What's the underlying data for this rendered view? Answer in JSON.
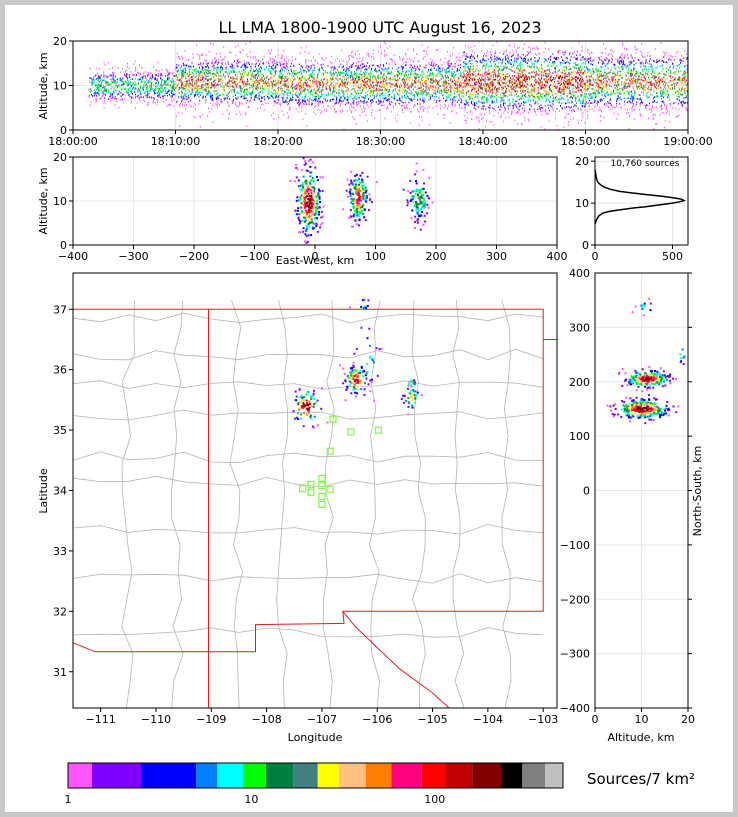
{
  "chart_data": [
    {
      "type": "scatter",
      "panel": "altitude-vs-time",
      "title": "LL LMA 1800-1900 UTC August 16, 2023",
      "xlabel": "",
      "ylabel": "Altitude, km",
      "xlim": [
        0,
        60
      ],
      "ylim": [
        0,
        20
      ],
      "x_ticks": [
        0,
        10,
        20,
        30,
        40,
        50,
        60
      ],
      "x_tick_labels": [
        "18:00:00",
        "18:10:00",
        "18:20:00",
        "18:30:00",
        "18:40:00",
        "18:50:00",
        "19:00:00"
      ],
      "y_ticks": [
        0,
        10,
        20
      ],
      "density_bands": [
        {
          "t_start": 1.5,
          "t_end": 10,
          "alt_center": 10,
          "alt_spread": 2,
          "intensity": 0.5
        },
        {
          "t_start": 10,
          "t_end": 20,
          "alt_center": 11,
          "alt_spread": 3,
          "intensity": 0.8
        },
        {
          "t_start": 20,
          "t_end": 38,
          "alt_center": 10.5,
          "alt_spread": 3,
          "intensity": 0.8
        },
        {
          "t_start": 38,
          "t_end": 50,
          "alt_center": 11,
          "alt_spread": 4,
          "intensity": 1.0
        },
        {
          "t_start": 50,
          "t_end": 60,
          "alt_center": 11,
          "alt_spread": 3.5,
          "intensity": 0.8
        }
      ]
    },
    {
      "type": "heatmap",
      "panel": "altitude-vs-east-west",
      "xlabel": "East-West, km",
      "ylabel": "Altitude, km",
      "xlim": [
        -400,
        400
      ],
      "ylim": [
        0,
        20
      ],
      "x_ticks": [
        -400,
        -300,
        -200,
        -100,
        0,
        100,
        200,
        300,
        400
      ],
      "y_ticks": [
        0,
        10,
        20
      ],
      "clusters": [
        {
          "x": -12,
          "y": 10,
          "sx": 10,
          "sy": 4,
          "n": 280,
          "peak": 1.0
        },
        {
          "x": 70,
          "y": 11,
          "sx": 8,
          "sy": 2.8,
          "n": 170,
          "peak": 0.85
        },
        {
          "x": 170,
          "y": 10.5,
          "sx": 9,
          "sy": 2.5,
          "n": 110,
          "peak": 0.5
        }
      ]
    },
    {
      "type": "line",
      "panel": "altitude-histogram",
      "annotation": "10,760 sources",
      "xlim": [
        0,
        600
      ],
      "ylim": [
        0,
        21
      ],
      "x_ticks": [
        0,
        500
      ],
      "y_ticks": [
        0,
        10,
        20
      ],
      "x": [
        0,
        10,
        25,
        50,
        90,
        140,
        200,
        260,
        320,
        380,
        440,
        500,
        545,
        575,
        560,
        520,
        440,
        340,
        240,
        160,
        100,
        60,
        35,
        18,
        10,
        5,
        0
      ],
      "y": [
        5,
        6,
        7,
        7.6,
        8,
        8.3,
        8.6,
        8.9,
        9.1,
        9.4,
        9.7,
        10,
        10.3,
        10.6,
        10.9,
        11.2,
        11.6,
        12,
        12.4,
        12.8,
        13.3,
        13.8,
        14.4,
        15,
        15.8,
        16.8,
        18
      ]
    },
    {
      "type": "heatmap",
      "panel": "plan-view-map",
      "xlabel": "Longitude",
      "ylabel": "Latitude",
      "xlim": [
        -111.5,
        -102.75
      ],
      "ylim": [
        30.4,
        37.6
      ],
      "x_ticks": [
        -111,
        -110,
        -109,
        -108,
        -107,
        -106,
        -105,
        -104,
        -103
      ],
      "y_ticks": [
        31,
        32,
        33,
        34,
        35,
        36,
        37
      ],
      "clusters": [
        {
          "lon": -107.3,
          "lat": 35.4,
          "slon": 0.12,
          "slat": 0.15,
          "n": 90,
          "peak": 1.0
        },
        {
          "lon": -106.4,
          "lat": 35.85,
          "slon": 0.1,
          "slat": 0.12,
          "n": 80,
          "peak": 0.9
        },
        {
          "lon": -106.2,
          "lat": 36.2,
          "slon": 0.15,
          "slat": 0.3,
          "n": 25,
          "peak": 0.3
        },
        {
          "lon": -105.4,
          "lat": 35.55,
          "slon": 0.08,
          "slat": 0.1,
          "n": 35,
          "peak": 0.6
        },
        {
          "lon": -105.4,
          "lat": 35.78,
          "slon": 0.05,
          "slat": 0.05,
          "n": 10,
          "peak": 0.4
        },
        {
          "lon": -106.25,
          "lat": 37.1,
          "slon": 0.05,
          "slat": 0.06,
          "n": 10,
          "peak": 0.35
        }
      ],
      "stations": [
        {
          "lon": -106.8,
          "lat": 35.18
        },
        {
          "lon": -106.48,
          "lat": 34.97
        },
        {
          "lon": -105.98,
          "lat": 35.0
        },
        {
          "lon": -106.85,
          "lat": 34.65
        },
        {
          "lon": -107.0,
          "lat": 34.2
        },
        {
          "lon": -107.2,
          "lat": 34.1
        },
        {
          "lon": -107.0,
          "lat": 34.08
        },
        {
          "lon": -107.35,
          "lat": 34.03
        },
        {
          "lon": -107.2,
          "lat": 33.97
        },
        {
          "lon": -107.0,
          "lat": 33.9
        },
        {
          "lon": -106.85,
          "lat": 34.02
        },
        {
          "lon": -107.0,
          "lat": 33.77
        }
      ]
    },
    {
      "type": "heatmap",
      "panel": "north-south-vs-altitude",
      "xlabel": "Altitude, km",
      "ylabel": "North-South, km",
      "xlim": [
        0,
        20
      ],
      "ylim": [
        -400,
        400
      ],
      "x_ticks": [
        0,
        10,
        20
      ],
      "y_ticks": [
        -400,
        -300,
        -200,
        -100,
        0,
        100,
        200,
        300,
        400
      ],
      "clusters": [
        {
          "x": 11,
          "y": 207,
          "sx": 2.5,
          "sy": 8,
          "n": 200,
          "peak": 0.95
        },
        {
          "x": 10,
          "y": 152,
          "sx": 3,
          "sy": 9,
          "n": 260,
          "peak": 1.0
        },
        {
          "x": 10.5,
          "y": 340,
          "sx": 1.2,
          "sy": 6,
          "n": 12,
          "peak": 0.3
        },
        {
          "x": 18.5,
          "y": 250,
          "sx": 0.6,
          "sy": 10,
          "n": 8,
          "peak": 0.3
        }
      ]
    }
  ],
  "colorbar": {
    "colors": [
      "#ff55ff",
      "#8000ff",
      "#0000ff",
      "#0080ff",
      "#00ffff",
      "#00ff00",
      "#008040",
      "#408080",
      "#ffff00",
      "#ffc080",
      "#ff8000",
      "#ff0080",
      "#ff0000",
      "#c00000",
      "#800000",
      "#000000",
      "#808080",
      "#c0c0c0",
      "#ffffff"
    ],
    "tick_labels": [
      "1",
      "10",
      "100"
    ],
    "label": "Sources/7 km²"
  },
  "colors": {
    "state_border": "#dd2020",
    "county_line": "#b4b4b4",
    "station": "#7cff3a"
  }
}
